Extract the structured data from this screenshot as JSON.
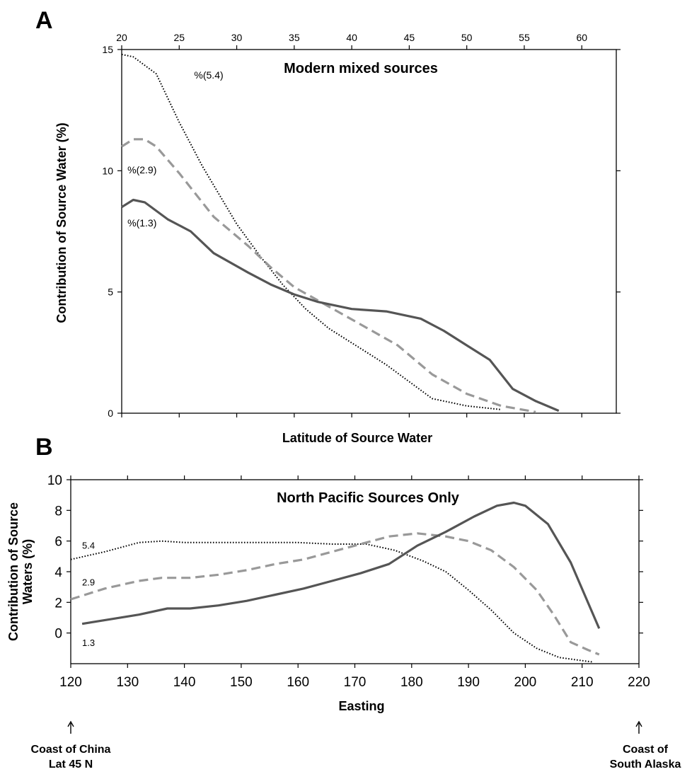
{
  "chart_data": [
    {
      "panel": "A",
      "type": "line",
      "title": "Modern mixed sources",
      "xlabel": "Latitude of  Source Water",
      "ylabel": "Contribution of Source Water  (%)",
      "xlim": [
        20,
        63
      ],
      "ylim": [
        0,
        15
      ],
      "xticks": [
        20,
        25,
        30,
        35,
        40,
        45,
        50,
        55,
        60
      ],
      "yticks": [
        0,
        5,
        10,
        15
      ],
      "x_tick_position": "top",
      "grid": false,
      "legend": "none",
      "series": [
        {
          "name": "%(5.4)",
          "style": "dotted",
          "color": "#000000",
          "points": [
            [
              20,
              14.8
            ],
            [
              21,
              14.7
            ],
            [
              23,
              14.0
            ],
            [
              25,
              12.0
            ],
            [
              27,
              10.2
            ],
            [
              30,
              7.8
            ],
            [
              32,
              6.5
            ],
            [
              34,
              5.3
            ],
            [
              36,
              4.3
            ],
            [
              38,
              3.5
            ],
            [
              41,
              2.6
            ],
            [
              43,
              2.0
            ],
            [
              45,
              1.3
            ],
            [
              47,
              0.6
            ],
            [
              50,
              0.3
            ],
            [
              53,
              0.15
            ]
          ]
        },
        {
          "name": "%(2.9)",
          "style": "dashed",
          "color": "#999999",
          "points": [
            [
              20,
              11.0
            ],
            [
              21,
              11.3
            ],
            [
              22,
              11.3
            ],
            [
              23,
              11.0
            ],
            [
              25,
              9.9
            ],
            [
              28,
              8.1
            ],
            [
              31,
              6.9
            ],
            [
              33,
              6.0
            ],
            [
              35,
              5.2
            ],
            [
              38,
              4.4
            ],
            [
              41,
              3.6
            ],
            [
              44,
              2.8
            ],
            [
              47,
              1.6
            ],
            [
              50,
              0.8
            ],
            [
              53,
              0.3
            ],
            [
              56,
              0.05
            ]
          ]
        },
        {
          "name": "%(1.3)",
          "style": "solid",
          "color": "#555555",
          "points": [
            [
              20,
              8.5
            ],
            [
              21,
              8.8
            ],
            [
              22,
              8.7
            ],
            [
              24,
              8.0
            ],
            [
              26,
              7.5
            ],
            [
              28,
              6.6
            ],
            [
              31,
              5.8
            ],
            [
              33,
              5.3
            ],
            [
              35,
              4.9
            ],
            [
              37,
              4.6
            ],
            [
              40,
              4.3
            ],
            [
              43,
              4.2
            ],
            [
              46,
              3.9
            ],
            [
              48,
              3.4
            ],
            [
              50,
              2.8
            ],
            [
              52,
              2.2
            ],
            [
              54,
              1.0
            ],
            [
              56,
              0.5
            ],
            [
              58,
              0.1
            ]
          ]
        }
      ]
    },
    {
      "panel": "B",
      "type": "line",
      "title": "North Pacific Sources Only",
      "xlabel": "Easting",
      "ylabel": "Contribution of Source Waters (%)",
      "ylabel_lines": [
        "Contribution of Source",
        "Waters (%)"
      ],
      "xlim": [
        120,
        220
      ],
      "ylim": [
        -2,
        10
      ],
      "xticks": [
        120,
        130,
        140,
        150,
        160,
        170,
        180,
        190,
        200,
        210,
        220
      ],
      "yticks": [
        0,
        2,
        4,
        6,
        8,
        10
      ],
      "grid": false,
      "legend": "none",
      "annotations": {
        "left": [
          "Coast of China",
          "Lat 45 N"
        ],
        "right": [
          "Coast of",
          "South Alaska"
        ]
      },
      "series": [
        {
          "name": "5.4",
          "style": "dotted",
          "color": "#000000",
          "points": [
            [
              120,
              4.8
            ],
            [
              126,
              5.3
            ],
            [
              132,
              5.9
            ],
            [
              136,
              6.0
            ],
            [
              140,
              5.9
            ],
            [
              150,
              5.9
            ],
            [
              160,
              5.9
            ],
            [
              166,
              5.8
            ],
            [
              172,
              5.8
            ],
            [
              177,
              5.4
            ],
            [
              182,
              4.7
            ],
            [
              186,
              4.0
            ],
            [
              190,
              2.8
            ],
            [
              194,
              1.5
            ],
            [
              198,
              0.0
            ],
            [
              202,
              -1.0
            ],
            [
              206,
              -1.6
            ],
            [
              210,
              -1.8
            ],
            [
              212,
              -1.9
            ]
          ]
        },
        {
          "name": "2.9",
          "style": "dashed",
          "color": "#999999",
          "points": [
            [
              120,
              2.2
            ],
            [
              126,
              2.9
            ],
            [
              132,
              3.4
            ],
            [
              136,
              3.6
            ],
            [
              141,
              3.6
            ],
            [
              146,
              3.8
            ],
            [
              151,
              4.1
            ],
            [
              156,
              4.5
            ],
            [
              161,
              4.8
            ],
            [
              166,
              5.3
            ],
            [
              171,
              5.8
            ],
            [
              176,
              6.3
            ],
            [
              181,
              6.5
            ],
            [
              186,
              6.3
            ],
            [
              190,
              6.0
            ],
            [
              194,
              5.4
            ],
            [
              198,
              4.3
            ],
            [
              202,
              2.8
            ],
            [
              205,
              1.2
            ],
            [
              208,
              -0.6
            ],
            [
              211,
              -1.1
            ],
            [
              213,
              -1.4
            ]
          ]
        },
        {
          "name": "1.3",
          "style": "solid",
          "color": "#555555",
          "points": [
            [
              122,
              0.6
            ],
            [
              127,
              0.9
            ],
            [
              132,
              1.2
            ],
            [
              137,
              1.6
            ],
            [
              141,
              1.6
            ],
            [
              146,
              1.8
            ],
            [
              151,
              2.1
            ],
            [
              156,
              2.5
            ],
            [
              161,
              2.9
            ],
            [
              166,
              3.4
            ],
            [
              171,
              3.9
            ],
            [
              176,
              4.5
            ],
            [
              181,
              5.7
            ],
            [
              186,
              6.6
            ],
            [
              191,
              7.6
            ],
            [
              195,
              8.3
            ],
            [
              198,
              8.5
            ],
            [
              200,
              8.3
            ],
            [
              204,
              7.1
            ],
            [
              208,
              4.6
            ],
            [
              213,
              0.3
            ]
          ]
        }
      ]
    }
  ]
}
